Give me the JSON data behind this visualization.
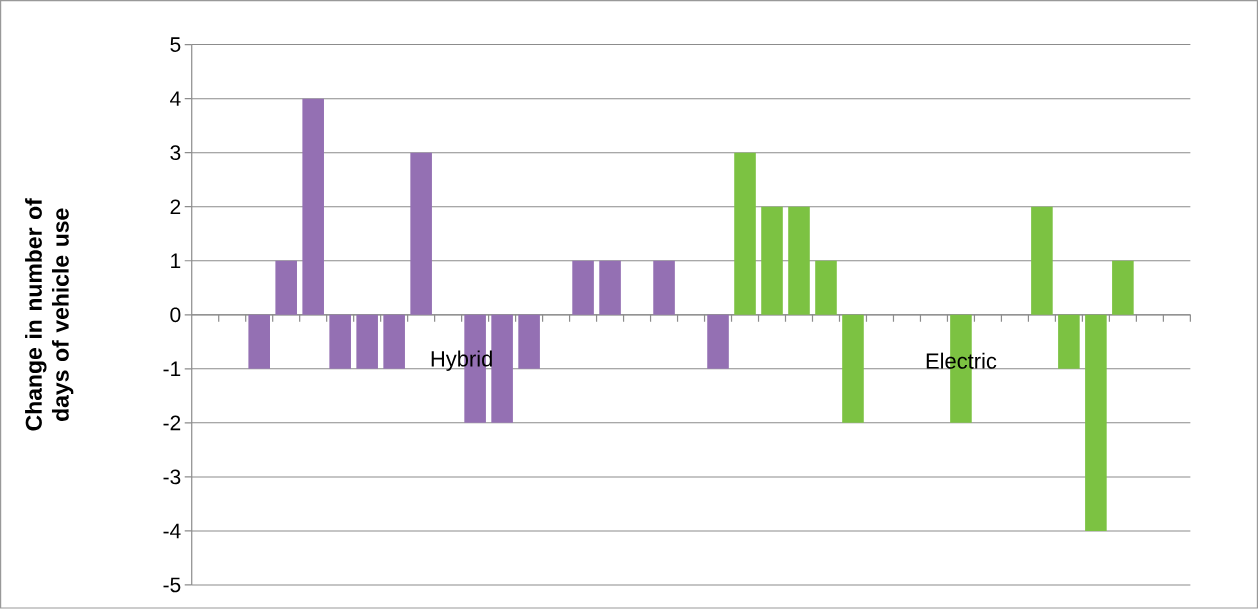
{
  "chart_data": {
    "type": "bar",
    "ylabel": "Change in number of days of vehicle use",
    "categories": [
      null,
      null,
      null,
      null,
      null,
      null,
      null,
      null,
      null,
      null,
      null,
      null,
      null,
      null,
      null,
      null,
      null,
      null,
      null,
      null,
      null,
      null,
      null,
      null,
      null,
      null,
      null,
      null,
      null,
      null,
      null,
      null,
      null,
      null,
      null,
      null,
      null
    ],
    "series": [
      {
        "name": "Hybrid",
        "color": "#9470b3",
        "values": [
          0,
          0,
          -1,
          1,
          4,
          -1,
          -1,
          -1,
          3,
          0,
          -2,
          -2,
          -1,
          0,
          1,
          1,
          0,
          1,
          0,
          -1,
          null,
          null,
          null,
          null,
          null,
          null,
          null,
          null,
          null,
          null,
          null,
          null,
          null,
          null,
          null,
          null,
          null
        ]
      },
      {
        "name": "Electric",
        "color": "#7cc242",
        "values": [
          null,
          null,
          null,
          null,
          null,
          null,
          null,
          null,
          null,
          null,
          null,
          null,
          null,
          null,
          null,
          null,
          null,
          null,
          null,
          null,
          3,
          2,
          2,
          1,
          -2,
          0,
          0,
          0,
          -2,
          0,
          0,
          2,
          -1,
          -4,
          1,
          0,
          0
        ]
      }
    ],
    "ylim": [
      -5,
      5
    ],
    "yticks": [
      -5,
      -4,
      -3,
      -2,
      -1,
      0,
      1,
      2,
      3,
      4,
      5
    ],
    "grid": "y",
    "legend": false
  }
}
